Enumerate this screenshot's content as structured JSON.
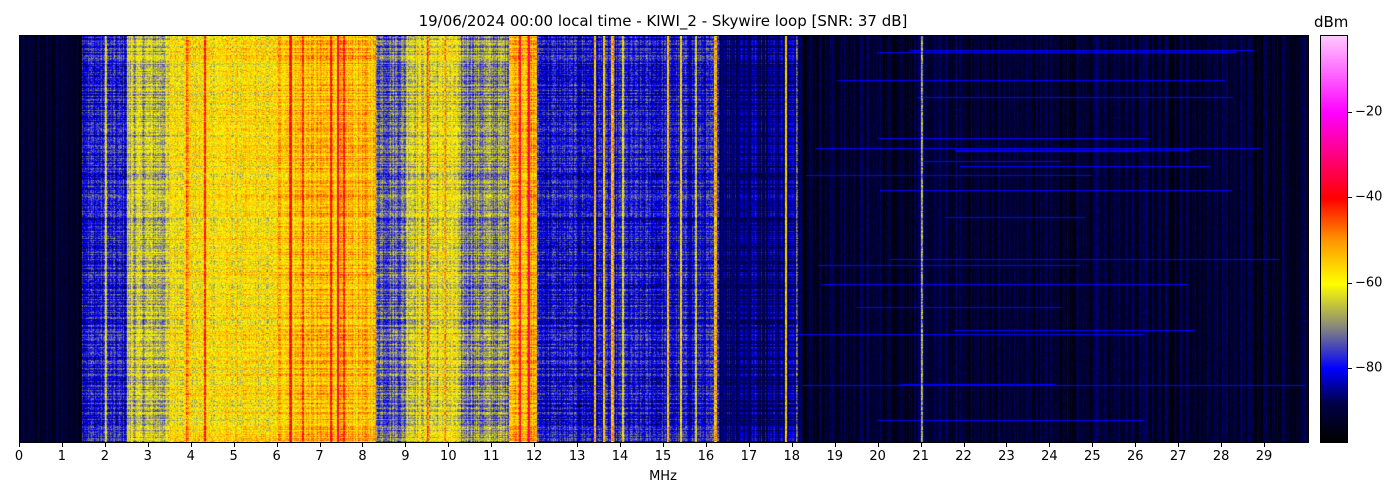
{
  "chart_data": {
    "type": "heatmap",
    "title": "19/06/2024 00:00 local time - KIWI_2 - Skywire loop [SNR: 37 dB]",
    "xlabel": "MHz",
    "ylabel": "",
    "xlim": [
      0,
      30
    ],
    "x_ticks": [
      "0",
      "1",
      "2",
      "3",
      "4",
      "5",
      "6",
      "7",
      "8",
      "9",
      "10",
      "11",
      "12",
      "13",
      "14",
      "15",
      "16",
      "17",
      "18",
      "19",
      "20",
      "21",
      "22",
      "23",
      "24",
      "25",
      "26",
      "27",
      "28",
      "29"
    ],
    "colorbar": {
      "label": "dBm",
      "range": [
        -97,
        -2
      ],
      "ticks": [
        -20,
        -40,
        -60,
        -80
      ],
      "tick_labels": [
        "−20",
        "−40",
        "−60",
        "−80"
      ],
      "colormap": [
        {
          "value": -97,
          "color": "#000000"
        },
        {
          "value": -88,
          "color": "#00004a"
        },
        {
          "value": -80,
          "color": "#0000ff"
        },
        {
          "value": -70,
          "color": "#8a8a7a"
        },
        {
          "value": -60,
          "color": "#ffff00"
        },
        {
          "value": -50,
          "color": "#ff9900"
        },
        {
          "value": -40,
          "color": "#ff0000"
        },
        {
          "value": -20,
          "color": "#ff00ff"
        },
        {
          "value": -2,
          "color": "#ffc8ff"
        }
      ]
    },
    "band_levels_dBm": [
      {
        "from": 0,
        "to": 1.45,
        "level": -92
      },
      {
        "from": 1.45,
        "to": 2.5,
        "level": -79
      },
      {
        "from": 2.5,
        "to": 3.5,
        "level": -66
      },
      {
        "from": 3.5,
        "to": 6,
        "level": -59
      },
      {
        "from": 6,
        "to": 8.3,
        "level": -54
      },
      {
        "from": 8.3,
        "to": 9,
        "level": -72
      },
      {
        "from": 9,
        "to": 10.2,
        "level": -63
      },
      {
        "from": 10.2,
        "to": 11.4,
        "level": -70
      },
      {
        "from": 11.4,
        "to": 12.05,
        "level": -52
      },
      {
        "from": 12.05,
        "to": 15,
        "level": -80
      },
      {
        "from": 15,
        "to": 16.3,
        "level": -80
      },
      {
        "from": 16.3,
        "to": 18.2,
        "level": -85
      },
      {
        "from": 18.2,
        "to": 30,
        "level": -91
      }
    ],
    "carriers": [
      {
        "mhz": 2.0,
        "level": -60
      },
      {
        "mhz": 2.6,
        "level": -62
      },
      {
        "mhz": 3.9,
        "level": -48
      },
      {
        "mhz": 4.3,
        "level": -40
      },
      {
        "mhz": 6.3,
        "level": -40
      },
      {
        "mhz": 6.6,
        "level": -44
      },
      {
        "mhz": 7.25,
        "level": -35
      },
      {
        "mhz": 7.4,
        "level": -40
      },
      {
        "mhz": 7.55,
        "level": -45
      },
      {
        "mhz": 9.5,
        "level": -48
      },
      {
        "mhz": 9.9,
        "level": -50
      },
      {
        "mhz": 11.65,
        "level": -36
      },
      {
        "mhz": 11.85,
        "level": -35
      },
      {
        "mhz": 13.4,
        "level": -58
      },
      {
        "mhz": 13.6,
        "level": -55
      },
      {
        "mhz": 13.8,
        "level": -56
      },
      {
        "mhz": 14.05,
        "level": -60
      },
      {
        "mhz": 15.1,
        "level": -58
      },
      {
        "mhz": 15.4,
        "level": -62
      },
      {
        "mhz": 15.75,
        "level": -64
      },
      {
        "mhz": 16.2,
        "level": -55
      },
      {
        "mhz": 17.85,
        "level": -60
      },
      {
        "mhz": 18.1,
        "level": -72
      },
      {
        "mhz": 21.0,
        "level": -70
      }
    ]
  }
}
